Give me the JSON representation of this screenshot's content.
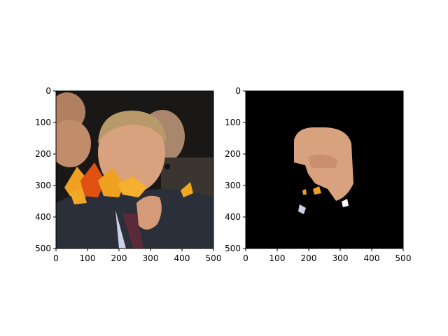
{
  "chart_data": [
    {
      "type": "image",
      "title": "",
      "xlabel": "",
      "ylabel": "",
      "xlim": [
        0,
        500
      ],
      "ylim": [
        500,
        0
      ],
      "x_ticks": [
        "0",
        "100",
        "200",
        "300",
        "400",
        "500"
      ],
      "y_ticks": [
        "0",
        "100",
        "200",
        "300",
        "400",
        "500"
      ],
      "content": "photo with autumn-leaf overlay"
    },
    {
      "type": "image",
      "title": "",
      "xlabel": "",
      "ylabel": "",
      "xlim": [
        0,
        500
      ],
      "ylim": [
        500,
        0
      ],
      "x_ticks": [
        "0",
        "100",
        "200",
        "300",
        "400",
        "500"
      ],
      "y_ticks": [
        "0",
        "100",
        "200",
        "300",
        "400",
        "500"
      ],
      "content": "segmentation mask on black background"
    }
  ],
  "colors": {
    "mask_background": "#000000",
    "leaf_orange": "#f0a020",
    "leaf_red": "#e05010",
    "suit_dark": "#2a2f3a",
    "skin": "#d9a27e"
  }
}
